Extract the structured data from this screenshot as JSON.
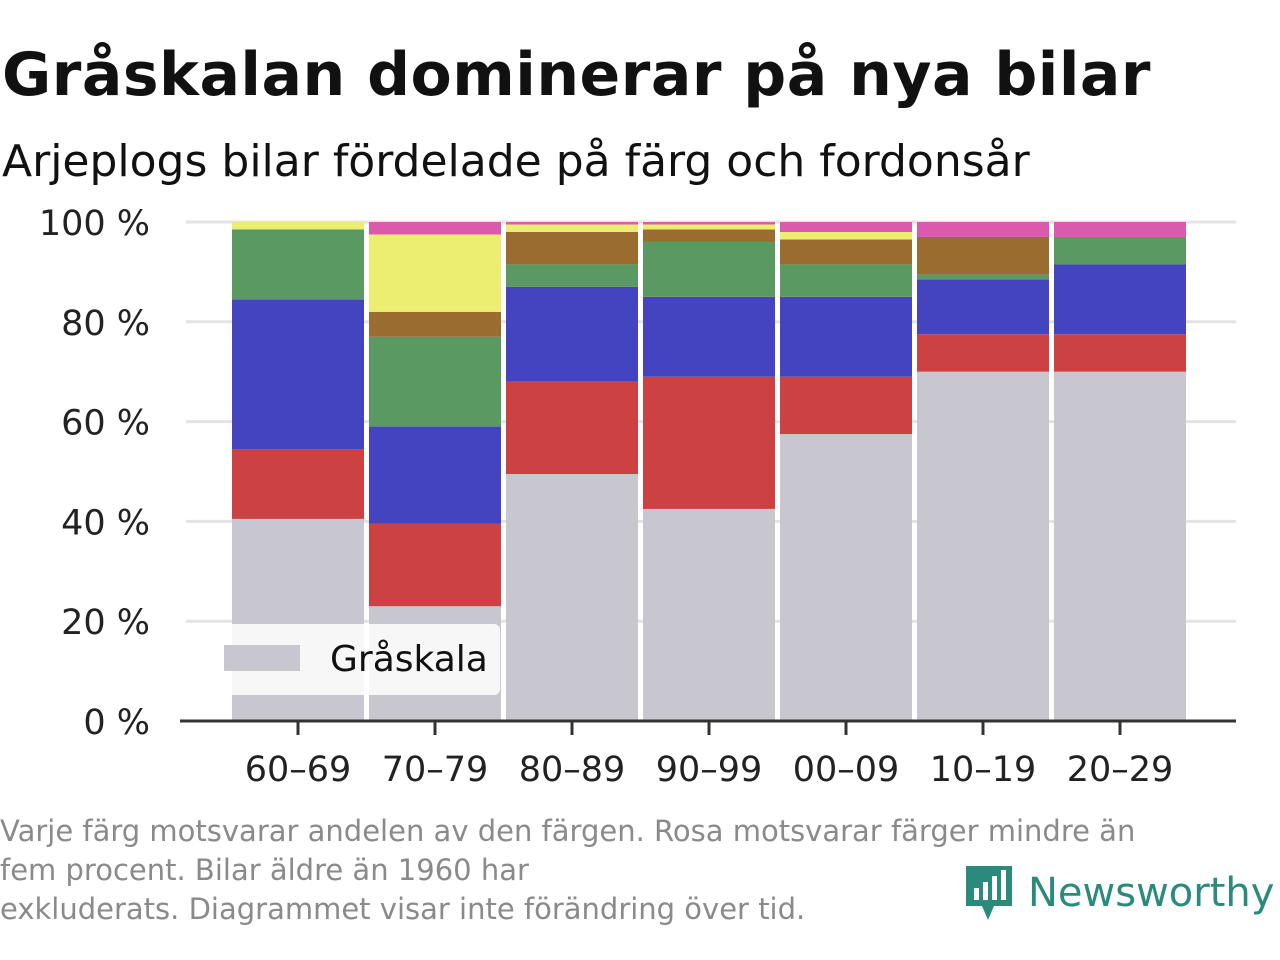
{
  "title": "Gråskalan dominerar på nya bilar",
  "subtitle": "Arjeplogs bilar fördelade på färg och fordonsår",
  "caption": {
    "line1": "Varje färg motsvarar andelen av den färgen. Rosa motsvarar färger mindre än",
    "line2": "fem procent. Bilar äldre än 1960 har",
    "line3": "exkluderats. Diagrammet visar inte förändring över tid."
  },
  "brand": {
    "name": "Newsworthy",
    "icon": "newsworthy-logo-icon",
    "color": "#2a8a7c"
  },
  "legend": {
    "label": "Gråskala",
    "color": "#c8c7d0"
  },
  "chart_data": {
    "type": "bar",
    "stacked": true,
    "categories": [
      "60–69",
      "70–79",
      "80–89",
      "90–99",
      "00–09",
      "10–19",
      "20–29"
    ],
    "ylim": [
      0,
      100
    ],
    "yticks": [
      "0 %",
      "20 %",
      "40 %",
      "60 %",
      "80 %",
      "100 %"
    ],
    "ytick_values": [
      0,
      20,
      40,
      60,
      80,
      100
    ],
    "grid": true,
    "legend_position": "bottom-left",
    "series": [
      {
        "name": "Gråskala",
        "color": "#c8c7d0",
        "values": [
          40.5,
          23.0,
          49.5,
          42.5,
          57.5,
          70.0,
          70.0
        ]
      },
      {
        "color": "#cc4242",
        "values": [
          14.0,
          16.5,
          18.5,
          26.5,
          11.5,
          7.5,
          7.5
        ]
      },
      {
        "color": "#4444c0",
        "values": [
          30.0,
          19.5,
          19.0,
          16.0,
          16.0,
          11.0,
          14.0
        ]
      },
      {
        "color": "#5a9a62",
        "values": [
          14.0,
          18.0,
          4.5,
          11.0,
          6.5,
          1.0,
          5.5
        ]
      },
      {
        "color": "#9a6c30",
        "values": [
          0,
          5.0,
          6.5,
          2.5,
          5.0,
          7.5,
          0
        ]
      },
      {
        "color": "#ecee72",
        "values": [
          1.5,
          15.5,
          1.5,
          1.0,
          1.5,
          0,
          0
        ]
      },
      {
        "color": "#da5aae",
        "values": [
          0,
          2.5,
          0.5,
          0.5,
          2.0,
          3.0,
          3.0
        ]
      }
    ]
  }
}
